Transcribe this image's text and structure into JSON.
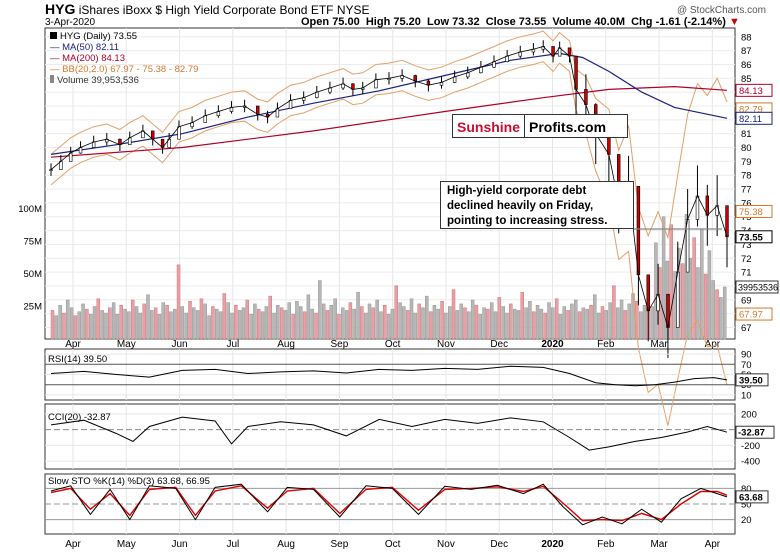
{
  "header": {
    "symbol": "HYG",
    "name": "iShares iBoxx $ High Yield Corporate Bond ETF",
    "exchange": "NYSE",
    "date": "3-Apr-2020",
    "open_label": "Open",
    "open": "75.00",
    "high_label": "High",
    "high": "75.20",
    "low_label": "Low",
    "low": "73.32",
    "close_label": "Close",
    "close": "73.55",
    "volume_label": "Volume",
    "volume": "40.0M",
    "chg_label": "Chg",
    "chg": "-1.61 (-2.14%)",
    "chg_arrow": "▼",
    "credit": "@ StockCharts.com"
  },
  "legend": {
    "main": "HYG (Daily) 73.55",
    "ma50": "MA(50) 82.11",
    "ma200": "MA(200) 84.13",
    "bb": "BB(20,2.0) 67.97 - 75.38 - 82.79",
    "volume": "Volume 39,953,536"
  },
  "annotation": "High-yield corporate debt declined heavily on Friday, pointing to increasing stress.",
  "logo": {
    "part1": "Sunshine",
    "part2": "Profits.com"
  },
  "panels": {
    "rsi_label": "RSI(14) 39.50",
    "cci_label": "CCI(20) -32.87",
    "sto_label": "Slow STO %K(14) %D(3) 63.68, 66.95"
  },
  "months": [
    "Apr",
    "May",
    "Jun",
    "Jul",
    "Aug",
    "Sep",
    "Oct",
    "Nov",
    "Dec",
    "2020",
    "Feb",
    "Mar",
    "Apr"
  ],
  "chart_data": {
    "type": "line",
    "price_axis": {
      "ticks": [
        67,
        68,
        69,
        70,
        71,
        72,
        73,
        74,
        75,
        76,
        77,
        78,
        79,
        80,
        81,
        82,
        83,
        84,
        85,
        86,
        87,
        88
      ],
      "range": [
        66.6,
        88.2
      ]
    },
    "price_markers": [
      "84.13",
      "82.79",
      "82.11",
      "75.38",
      "73.55",
      "67.97"
    ],
    "volume_axis": {
      "ticks": [
        "100M",
        "75M",
        "50M",
        "25M"
      ],
      "marker": "39953536"
    },
    "rsi_axis": {
      "ticks": [
        90,
        70,
        50,
        30,
        10
      ],
      "marker": "39.50"
    },
    "cci_axis": {
      "ticks": [
        200,
        0,
        -200,
        -400
      ],
      "marker": "-32.87"
    },
    "sto_axis": {
      "ticks": [
        80,
        50,
        20
      ],
      "marker": "63.68"
    },
    "price_path": [
      [
        0,
        78.4
      ],
      [
        3,
        79.0
      ],
      [
        6,
        79.6
      ],
      [
        9,
        80.0
      ],
      [
        13,
        80.4
      ],
      [
        17,
        80.6
      ],
      [
        21,
        80.2
      ],
      [
        24,
        80.7
      ],
      [
        28,
        81.2
      ],
      [
        31,
        80.6
      ],
      [
        34,
        80.0
      ],
      [
        36,
        80.6
      ],
      [
        39,
        81.5
      ],
      [
        43,
        81.8
      ],
      [
        47,
        82.3
      ],
      [
        51,
        82.6
      ],
      [
        55,
        82.9
      ],
      [
        59,
        83.0
      ],
      [
        63,
        82.4
      ],
      [
        66,
        82.2
      ],
      [
        69,
        82.8
      ],
      [
        73,
        83.4
      ],
      [
        77,
        83.6
      ],
      [
        81,
        84.0
      ],
      [
        85,
        84.3
      ],
      [
        89,
        84.6
      ],
      [
        92,
        84.2
      ],
      [
        95,
        84.3
      ],
      [
        99,
        84.9
      ],
      [
        103,
        85.0
      ],
      [
        107,
        85.2
      ],
      [
        111,
        84.8
      ],
      [
        115,
        84.5
      ],
      [
        119,
        84.7
      ],
      [
        123,
        85.1
      ],
      [
        127,
        85.4
      ],
      [
        131,
        85.8
      ],
      [
        135,
        86.2
      ],
      [
        139,
        86.6
      ],
      [
        143,
        86.9
      ],
      [
        147,
        87.1
      ],
      [
        150,
        87.3
      ],
      [
        153,
        86.6
      ],
      [
        155,
        87.2
      ],
      [
        158,
        86.6
      ],
      [
        160,
        84.2
      ],
      [
        163,
        83.1
      ],
      [
        166,
        81.0
      ],
      [
        170,
        79.5
      ],
      [
        173,
        76.0
      ],
      [
        176,
        77.2
      ],
      [
        179,
        70.8
      ],
      [
        182,
        68.2
      ],
      [
        185,
        69.4
      ],
      [
        188,
        67.0
      ],
      [
        191,
        71.0
      ],
      [
        194,
        74.8
      ],
      [
        197,
        76.5
      ],
      [
        200,
        75.1
      ],
      [
        203,
        75.8
      ],
      [
        206,
        73.55
      ]
    ],
    "ma50_path": [
      [
        0,
        79.5
      ],
      [
        20,
        80.2
      ],
      [
        40,
        81.0
      ],
      [
        60,
        82.2
      ],
      [
        80,
        83.2
      ],
      [
        100,
        84.1
      ],
      [
        120,
        85.2
      ],
      [
        140,
        86.3
      ],
      [
        155,
        86.8
      ],
      [
        162,
        86.5
      ],
      [
        170,
        85.5
      ],
      [
        180,
        84.0
      ],
      [
        190,
        82.9
      ],
      [
        206,
        82.11
      ]
    ],
    "ma200_path": [
      [
        0,
        79.3
      ],
      [
        40,
        80.0
      ],
      [
        80,
        81.2
      ],
      [
        120,
        82.6
      ],
      [
        150,
        83.6
      ],
      [
        170,
        84.2
      ],
      [
        190,
        84.4
      ],
      [
        206,
        84.13
      ]
    ],
    "rsi_path": [
      [
        0,
        52
      ],
      [
        10,
        56
      ],
      [
        20,
        50
      ],
      [
        30,
        45
      ],
      [
        40,
        58
      ],
      [
        50,
        60
      ],
      [
        60,
        52
      ],
      [
        70,
        55
      ],
      [
        80,
        57
      ],
      [
        90,
        53
      ],
      [
        100,
        60
      ],
      [
        110,
        58
      ],
      [
        120,
        62
      ],
      [
        130,
        60
      ],
      [
        140,
        66
      ],
      [
        150,
        64
      ],
      [
        158,
        52
      ],
      [
        166,
        34
      ],
      [
        172,
        30
      ],
      [
        178,
        28
      ],
      [
        184,
        30
      ],
      [
        190,
        35
      ],
      [
        196,
        42
      ],
      [
        202,
        44
      ],
      [
        206,
        39.5
      ]
    ],
    "cci_path": [
      [
        0,
        60
      ],
      [
        10,
        120
      ],
      [
        20,
        -50
      ],
      [
        25,
        -150
      ],
      [
        30,
        40
      ],
      [
        40,
        160
      ],
      [
        50,
        110
      ],
      [
        55,
        -180
      ],
      [
        60,
        40
      ],
      [
        70,
        100
      ],
      [
        80,
        60
      ],
      [
        90,
        -80
      ],
      [
        100,
        130
      ],
      [
        110,
        40
      ],
      [
        120,
        130
      ],
      [
        130,
        80
      ],
      [
        140,
        150
      ],
      [
        150,
        100
      ],
      [
        158,
        -100
      ],
      [
        164,
        -260
      ],
      [
        170,
        -220
      ],
      [
        178,
        -150
      ],
      [
        186,
        -100
      ],
      [
        194,
        -30
      ],
      [
        200,
        40
      ],
      [
        206,
        -32.87
      ]
    ],
    "stok_path": [
      [
        0,
        75
      ],
      [
        6,
        85
      ],
      [
        12,
        30
      ],
      [
        18,
        78
      ],
      [
        24,
        20
      ],
      [
        30,
        85
      ],
      [
        38,
        80
      ],
      [
        44,
        20
      ],
      [
        50,
        82
      ],
      [
        58,
        88
      ],
      [
        66,
        35
      ],
      [
        72,
        82
      ],
      [
        80,
        78
      ],
      [
        88,
        25
      ],
      [
        96,
        85
      ],
      [
        104,
        80
      ],
      [
        112,
        30
      ],
      [
        120,
        84
      ],
      [
        128,
        78
      ],
      [
        136,
        86
      ],
      [
        144,
        70
      ],
      [
        150,
        88
      ],
      [
        156,
        45
      ],
      [
        162,
        10
      ],
      [
        168,
        25
      ],
      [
        174,
        12
      ],
      [
        180,
        40
      ],
      [
        186,
        15
      ],
      [
        192,
        60
      ],
      [
        198,
        80
      ],
      [
        203,
        70
      ],
      [
        206,
        63.68
      ]
    ],
    "stod_path": [
      [
        0,
        72
      ],
      [
        6,
        80
      ],
      [
        12,
        40
      ],
      [
        18,
        70
      ],
      [
        24,
        28
      ],
      [
        30,
        78
      ],
      [
        38,
        82
      ],
      [
        44,
        28
      ],
      [
        50,
        75
      ],
      [
        58,
        85
      ],
      [
        66,
        42
      ],
      [
        72,
        75
      ],
      [
        80,
        80
      ],
      [
        88,
        32
      ],
      [
        96,
        78
      ],
      [
        104,
        82
      ],
      [
        112,
        38
      ],
      [
        120,
        78
      ],
      [
        128,
        80
      ],
      [
        136,
        83
      ],
      [
        144,
        74
      ],
      [
        150,
        84
      ],
      [
        156,
        52
      ],
      [
        162,
        18
      ],
      [
        168,
        20
      ],
      [
        174,
        18
      ],
      [
        180,
        32
      ],
      [
        186,
        20
      ],
      [
        192,
        50
      ],
      [
        198,
        74
      ],
      [
        203,
        74
      ],
      [
        206,
        66.95
      ]
    ],
    "volume_values": [
      22,
      18,
      26,
      20,
      30,
      24,
      18,
      21,
      27,
      23,
      19,
      25,
      31,
      22,
      20,
      24,
      28,
      19,
      26,
      23,
      21,
      30,
      25,
      20,
      27,
      34,
      22,
      24,
      19,
      28,
      26,
      21,
      23,
      57,
      25,
      20,
      29,
      24,
      22,
      31,
      27,
      18,
      25,
      23,
      21,
      35,
      28,
      20,
      26,
      22,
      24,
      30,
      19,
      27,
      23,
      21,
      25,
      33,
      20,
      26,
      24,
      22,
      28,
      19,
      29,
      25,
      21,
      34,
      23,
      20,
      45,
      27,
      22,
      26,
      31,
      19,
      24,
      22,
      28,
      23,
      36,
      25,
      20,
      27,
      24,
      30,
      21,
      26,
      19,
      23,
      41,
      28,
      25,
      22,
      31,
      20,
      27,
      24,
      33,
      21,
      26,
      23,
      29,
      20,
      25,
      38,
      22,
      27,
      24,
      21,
      30,
      26,
      19,
      24,
      23,
      28,
      21,
      32,
      25,
      20,
      27,
      23,
      22,
      36,
      24,
      29,
      21,
      26,
      23,
      20,
      28,
      24,
      31,
      19,
      25,
      22,
      27,
      30,
      21,
      24,
      23,
      26,
      34,
      20,
      25,
      22,
      28,
      41,
      24,
      30,
      22,
      27,
      35,
      29,
      21,
      26,
      23,
      25,
      74,
      55,
      94,
      60,
      88,
      52,
      70,
      58,
      96,
      62,
      78,
      55,
      84,
      50,
      68,
      45,
      38,
      32,
      40
    ]
  }
}
